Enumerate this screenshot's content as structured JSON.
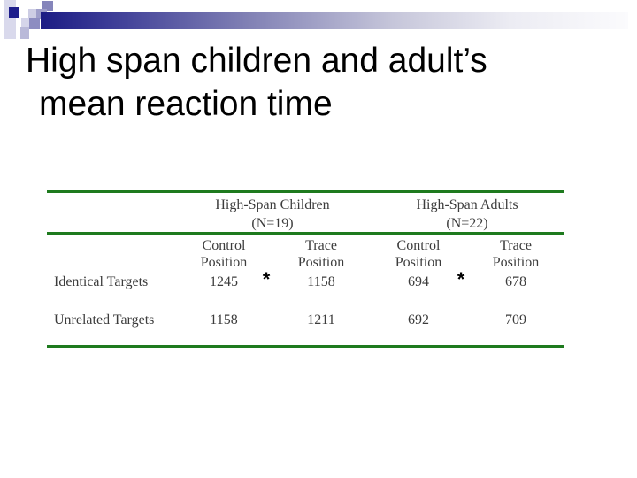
{
  "slide": {
    "title_line1": "High span children and adult’s",
    "title_line2": "mean reaction time"
  },
  "table": {
    "groups": [
      {
        "name": "High-Span Children",
        "n_label": "(N=19)"
      },
      {
        "name": "High-Span Adults",
        "n_label": "(N=22)"
      }
    ],
    "col_headers": [
      {
        "l1": "Control",
        "l2": "Position"
      },
      {
        "l1": "Trace",
        "l2": "Position"
      },
      {
        "l1": "Control",
        "l2": "Position"
      },
      {
        "l1": "Trace",
        "l2": "Position"
      }
    ],
    "rows": [
      {
        "label": "Identical Targets",
        "values": [
          "1245",
          "1158",
          "694",
          "678"
        ]
      },
      {
        "label": "Unrelated Targets",
        "values": [
          "1158",
          "1211",
          "692",
          "709"
        ]
      }
    ],
    "significance_marker": "*"
  },
  "colors": {
    "accent_green": "#1e7a1e",
    "navy": "#1e1e8c",
    "table_text": "#3c3c3c",
    "title_text": "#000000"
  },
  "chart_data": {
    "type": "table",
    "title": "High span children and adult’s mean reaction time",
    "column_groups": [
      {
        "label": "High-Span Children (N=19)",
        "columns": [
          "Control Position",
          "Trace Position"
        ]
      },
      {
        "label": "High-Span Adults (N=22)",
        "columns": [
          "Control Position",
          "Trace Position"
        ]
      }
    ],
    "rows": [
      {
        "label": "Identical Targets",
        "values": [
          1245,
          1158,
          694,
          678
        ],
        "asterisk_between_pairs": [
          true,
          true
        ]
      },
      {
        "label": "Unrelated Targets",
        "values": [
          1158,
          1211,
          692,
          709
        ],
        "asterisk_between_pairs": [
          false,
          false
        ]
      }
    ]
  }
}
